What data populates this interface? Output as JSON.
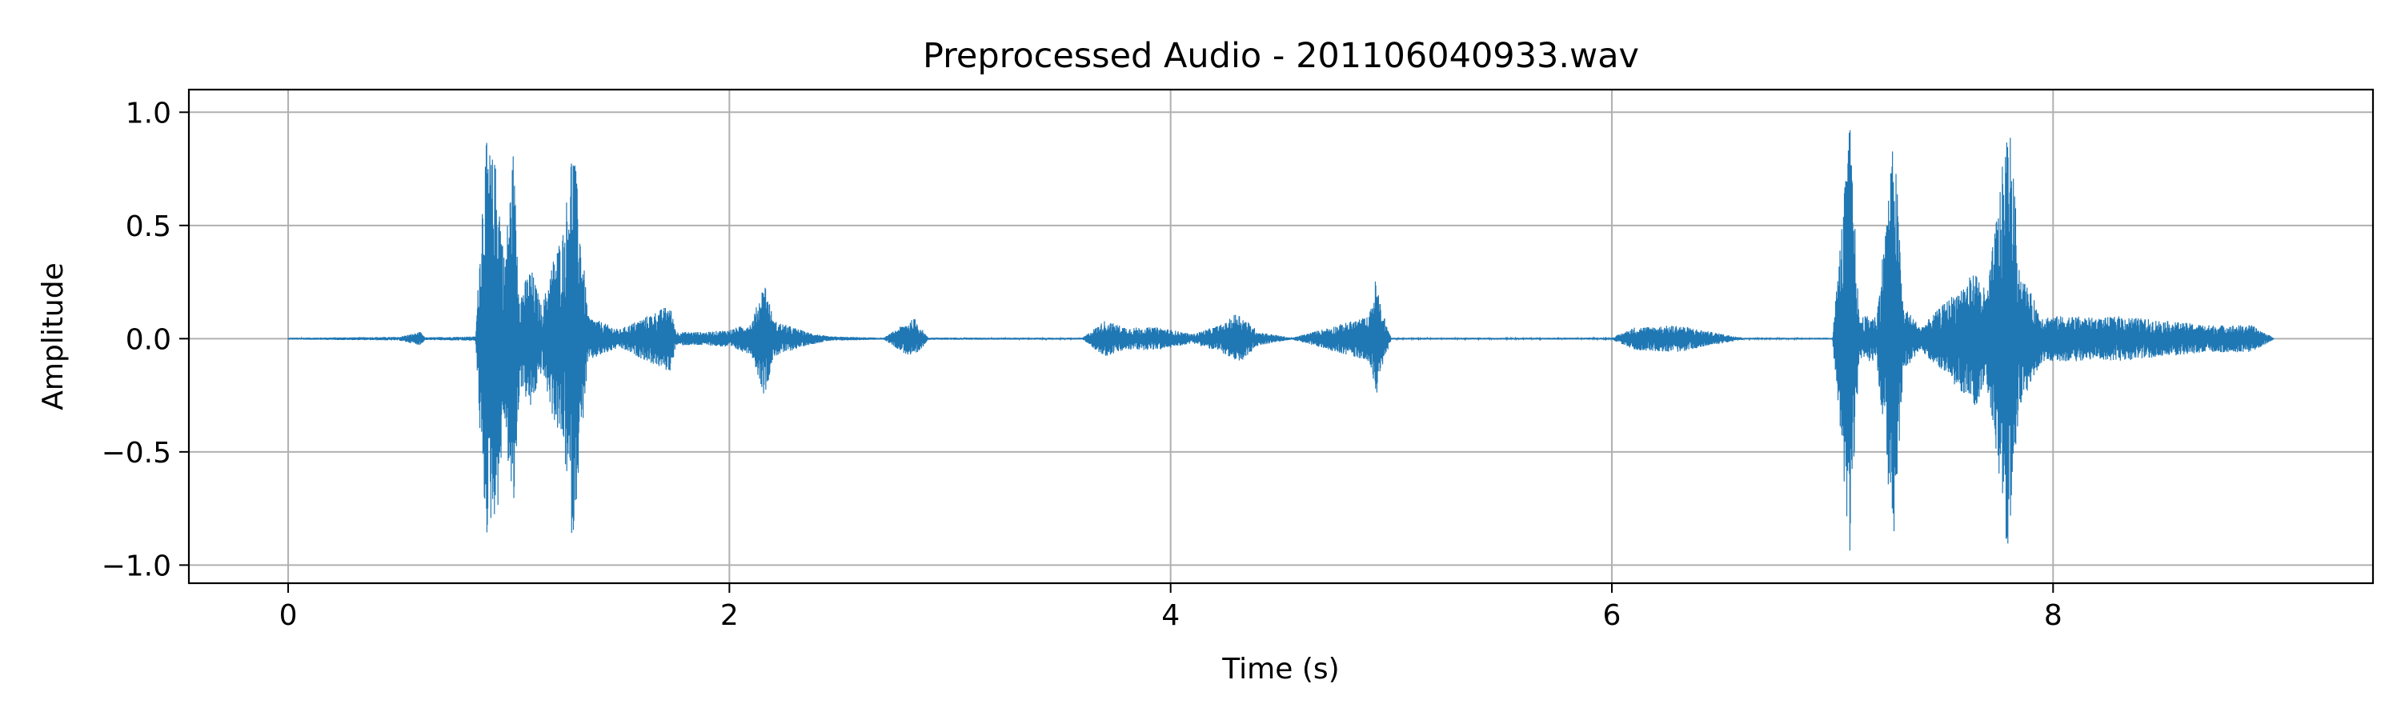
{
  "chart_data": {
    "type": "line",
    "title": "Preprocessed Audio - 201106040933.wav",
    "xlabel": "Time (s)",
    "ylabel": "Amplitude",
    "xlim": [
      -0.45,
      9.45
    ],
    "ylim": [
      -1.08,
      1.1
    ],
    "xticks": [
      {
        "value": 0,
        "label": "0"
      },
      {
        "value": 2,
        "label": "2"
      },
      {
        "value": 4,
        "label": "4"
      },
      {
        "value": 6,
        "label": "6"
      },
      {
        "value": 8,
        "label": "8"
      }
    ],
    "yticks": [
      {
        "value": 1.0,
        "label": "1.0"
      },
      {
        "value": 0.5,
        "label": "0.5"
      },
      {
        "value": 0.0,
        "label": "0.0"
      },
      {
        "value": -0.5,
        "label": "−0.5"
      },
      {
        "value": -1.0,
        "label": "−1.0"
      }
    ],
    "grid": true,
    "series": [
      {
        "color": "#1f77b4",
        "duration": 9.0,
        "envelope": [
          [
            0.0,
            0.004
          ],
          [
            0.5,
            0.008
          ],
          [
            0.6,
            0.03
          ],
          [
            0.62,
            0.006
          ],
          [
            0.85,
            0.01
          ],
          [
            0.88,
            0.65
          ],
          [
            0.9,
            0.88
          ],
          [
            0.92,
            0.82
          ],
          [
            0.95,
            0.76
          ],
          [
            0.98,
            0.35
          ],
          [
            1.02,
            0.84
          ],
          [
            1.05,
            0.2
          ],
          [
            1.1,
            0.32
          ],
          [
            1.15,
            0.14
          ],
          [
            1.2,
            0.35
          ],
          [
            1.25,
            0.5
          ],
          [
            1.29,
            0.92
          ],
          [
            1.32,
            0.55
          ],
          [
            1.36,
            0.1
          ],
          [
            1.5,
            0.04
          ],
          [
            1.73,
            0.15
          ],
          [
            1.76,
            0.03
          ],
          [
            1.9,
            0.03
          ],
          [
            2.0,
            0.04
          ],
          [
            2.1,
            0.07
          ],
          [
            2.16,
            0.26
          ],
          [
            2.2,
            0.08
          ],
          [
            2.35,
            0.03
          ],
          [
            2.45,
            0.01
          ],
          [
            2.7,
            0.004
          ],
          [
            2.8,
            0.07
          ],
          [
            2.84,
            0.09
          ],
          [
            2.9,
            0.005
          ],
          [
            3.6,
            0.004
          ],
          [
            3.7,
            0.08
          ],
          [
            3.8,
            0.05
          ],
          [
            3.95,
            0.05
          ],
          [
            4.1,
            0.02
          ],
          [
            4.25,
            0.07
          ],
          [
            4.3,
            0.12
          ],
          [
            4.4,
            0.03
          ],
          [
            4.55,
            0.004
          ],
          [
            4.9,
            0.1
          ],
          [
            4.93,
            0.27
          ],
          [
            4.96,
            0.12
          ],
          [
            5.0,
            0.004
          ],
          [
            6.0,
            0.004
          ],
          [
            6.1,
            0.05
          ],
          [
            6.3,
            0.06
          ],
          [
            6.45,
            0.03
          ],
          [
            6.6,
            0.004
          ],
          [
            7.0,
            0.004
          ],
          [
            7.08,
            0.97
          ],
          [
            7.12,
            0.1
          ],
          [
            7.2,
            0.1
          ],
          [
            7.28,
            0.92
          ],
          [
            7.32,
            0.15
          ],
          [
            7.4,
            0.05
          ],
          [
            7.6,
            0.25
          ],
          [
            7.65,
            0.3
          ],
          [
            7.7,
            0.2
          ],
          [
            7.8,
            1.0
          ],
          [
            7.85,
            0.3
          ],
          [
            7.95,
            0.1
          ],
          [
            8.1,
            0.1
          ],
          [
            8.2,
            0.09
          ],
          [
            8.3,
            0.1
          ],
          [
            8.5,
            0.08
          ],
          [
            8.7,
            0.06
          ],
          [
            8.9,
            0.06
          ],
          [
            9.0,
            0.004
          ]
        ]
      }
    ]
  }
}
